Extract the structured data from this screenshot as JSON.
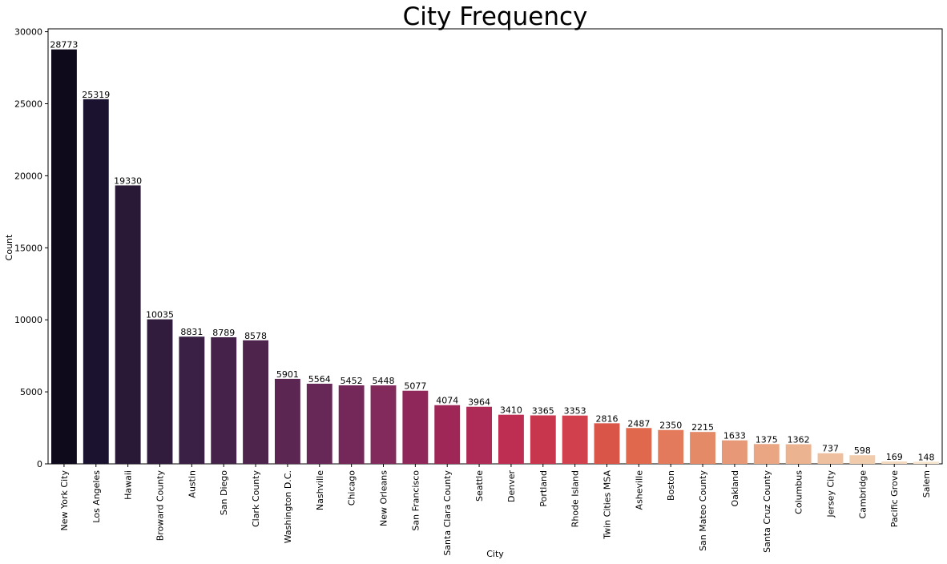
{
  "chart_data": {
    "type": "bar",
    "title": "City Frequency",
    "xlabel": "City",
    "ylabel": "Count",
    "ylim": [
      0,
      30200
    ],
    "yticks": [
      0,
      5000,
      10000,
      15000,
      20000,
      25000,
      30000
    ],
    "categories": [
      "New York City",
      "Los Angeles",
      "Hawaii",
      "Broward County",
      "Austin",
      "San Diego",
      "Clark County",
      "Washington D.C.",
      "Nashville",
      "Chicago",
      "New Orleans",
      "San Francisco",
      "Santa Clara County",
      "Seattle",
      "Denver",
      "Portland",
      "Rhode Island",
      "Twin Cities MSA",
      "Asheville",
      "Boston",
      "San Mateo County",
      "Oakland",
      "Santa Cruz County",
      "Columbus",
      "Jersey City",
      "Cambridge",
      "Pacific Grove",
      "Salem"
    ],
    "values": [
      28773,
      25319,
      19330,
      10035,
      8831,
      8789,
      8578,
      5901,
      5564,
      5452,
      5448,
      5077,
      4074,
      3964,
      3410,
      3365,
      3353,
      2816,
      2487,
      2350,
      2215,
      1633,
      1375,
      1362,
      737,
      598,
      169,
      148
    ],
    "colors": [
      "#0e0a1c",
      "#1b1230",
      "#291836",
      "#311c3d",
      "#3b2045",
      "#44224a",
      "#4f244c",
      "#5b2652",
      "#672757",
      "#742859",
      "#822a5c",
      "#90275a",
      "#9e2758",
      "#ae2b57",
      "#bd2e52",
      "#c8364e",
      "#d1414d",
      "#d95548",
      "#e0684c",
      "#e37a5b",
      "#e58a67",
      "#e79876",
      "#eaa683",
      "#ecb391",
      "#eec09f",
      "#f0ccad",
      "#f3d9bd",
      "#f6e4cd"
    ],
    "grid": false
  }
}
